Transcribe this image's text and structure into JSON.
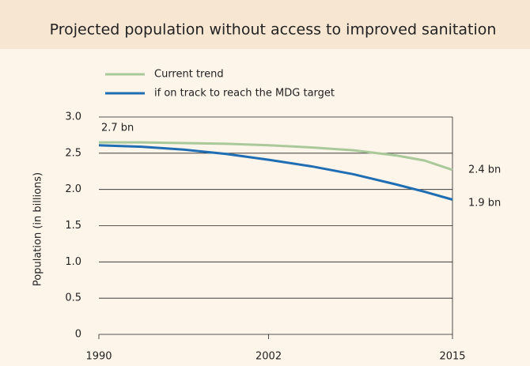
{
  "chart_data": {
    "type": "line",
    "title": "Projected population without access to improved sanitation",
    "y_label": "Population (in billions)",
    "x": [
      1990,
      1993,
      1996,
      1999,
      2002,
      2005,
      2008,
      2011,
      2013,
      2015
    ],
    "series": [
      {
        "name": "Current trend",
        "color": "#a9c99b",
        "values": [
          2.65,
          2.65,
          2.64,
          2.63,
          2.61,
          2.58,
          2.54,
          2.47,
          2.4,
          2.27
        ]
      },
      {
        "name": "if on track to reach the MDG target",
        "color": "#1f6db3",
        "values": [
          2.61,
          2.59,
          2.55,
          2.49,
          2.41,
          2.32,
          2.21,
          2.07,
          1.97,
          1.86
        ]
      }
    ],
    "annotations": [
      "2.7 bn",
      "2.4 bn",
      "1.9 bn"
    ],
    "xlim": [
      1990,
      2015
    ],
    "xticks": [
      1990,
      2002,
      2015
    ],
    "ylim": [
      0,
      3
    ],
    "yticks": [
      0,
      0.5,
      {
        "value": 1,
        "label": "1.0"
      },
      1.5,
      {
        "value": 2,
        "label": "2.0"
      },
      2.5,
      {
        "value": 3,
        "label": "3.0"
      }
    ],
    "grid": true
  }
}
